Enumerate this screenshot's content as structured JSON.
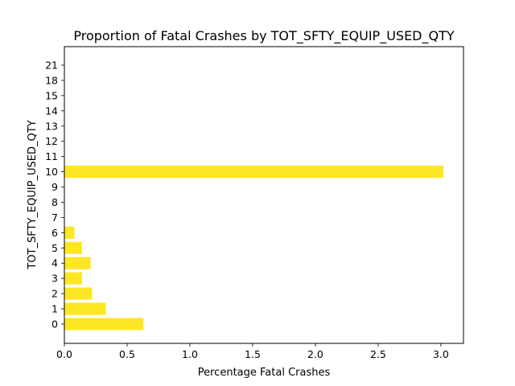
{
  "chart_data": {
    "type": "bar",
    "orientation": "horizontal",
    "title": "Proportion of Fatal Crashes by TOT_SFTY_EQUIP_USED_QTY",
    "xlabel": "Percentage Fatal Crashes",
    "ylabel": "TOT_SFTY_EQUIP_USED_QTY",
    "categories": [
      "0",
      "1",
      "2",
      "3",
      "4",
      "5",
      "6",
      "7",
      "8",
      "9",
      "10",
      "11",
      "12",
      "13",
      "14",
      "15",
      "18",
      "21"
    ],
    "values": [
      0.63,
      0.33,
      0.22,
      0.14,
      0.21,
      0.14,
      0.08,
      0,
      0,
      0,
      3.02,
      0,
      0,
      0,
      0,
      0,
      0,
      0
    ],
    "xlim": [
      0,
      3.18
    ],
    "xticks": [
      0.0,
      0.5,
      1.0,
      1.5,
      2.0,
      2.5,
      3.0
    ],
    "xtick_labels": [
      "0.0",
      "0.5",
      "1.0",
      "1.5",
      "2.0",
      "2.5",
      "3.0"
    ],
    "bar_color": "#fde725",
    "grid": false
  }
}
